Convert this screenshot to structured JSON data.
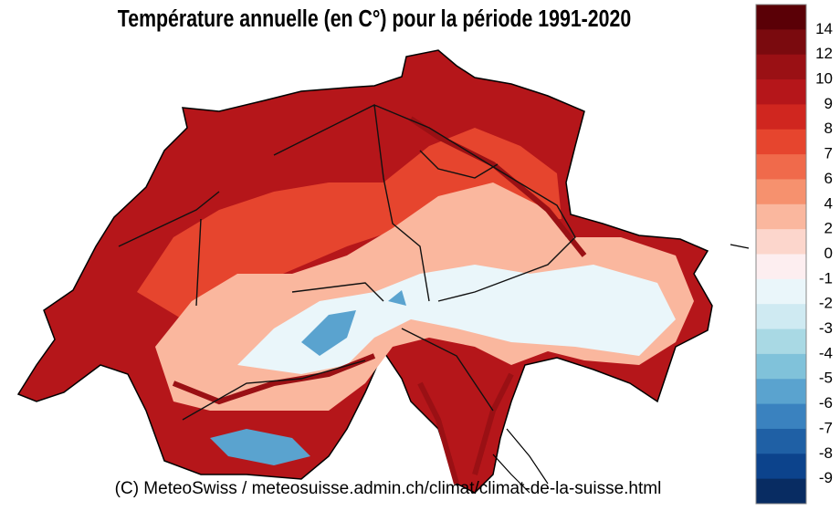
{
  "title": "Température annuelle (en C°) pour la période 1991-2020",
  "credit": "(C) MeteoSwiss / meteosuisse.admin.ch/climat/climat-de-la-suisse.html",
  "colorbar": {
    "labels": [
      14,
      12,
      10,
      9,
      8,
      7,
      6,
      4,
      2,
      0,
      -1,
      -2,
      -3,
      -4,
      -5,
      -6,
      -7,
      -8,
      -9
    ],
    "colors": [
      "#5a0006",
      "#7a0a0e",
      "#9a1014",
      "#b5161a",
      "#d0261f",
      "#e6452e",
      "#f06a4b",
      "#f6916e",
      "#fab79e",
      "#fcd6cc",
      "#fdeef0",
      "#eaf6fa",
      "#cfeaf2",
      "#a9d9e4",
      "#80c2da",
      "#5aa3cf",
      "#3a82bf",
      "#1f60a5",
      "#0c438c",
      "#082c62"
    ]
  }
}
